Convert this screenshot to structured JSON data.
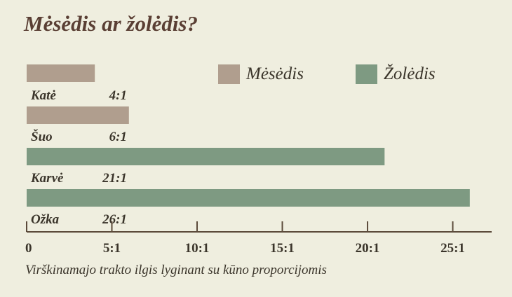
{
  "title": "Mėsėdis ar žolėdis?",
  "chart_data": {
    "type": "bar",
    "orientation": "horizontal",
    "title": "Mėsėdis ar žolėdis?",
    "xlabel": "Virškinamajo trakto ilgis lyginant su kūno proporcijomis",
    "ylabel": "",
    "xlim": [
      0,
      27.2
    ],
    "xticks": [
      0,
      5,
      10,
      15,
      20,
      25
    ],
    "xtick_labels": [
      "0",
      "5:1",
      "10:1",
      "15:1",
      "20:1",
      "25:1"
    ],
    "legend": [
      {
        "name": "Mėsėdis",
        "color": "#b09e8e"
      },
      {
        "name": "Žolėdis",
        "color": "#7e9a82"
      }
    ],
    "legend_position": "top-right",
    "bars": [
      {
        "category": "Katė",
        "label": "4:1",
        "value": 4,
        "group": "Mėsėdis",
        "color": "#b09e8e"
      },
      {
        "category": "Šuo",
        "label": "6:1",
        "value": 6,
        "group": "Mėsėdis",
        "color": "#b09e8e"
      },
      {
        "category": "Karvė",
        "label": "21:1",
        "value": 21,
        "group": "Žolėdis",
        "color": "#7e9a82"
      },
      {
        "category": "Ožka",
        "label": "26:1",
        "value": 26,
        "group": "Žolėdis",
        "color": "#7e9a82"
      }
    ]
  }
}
